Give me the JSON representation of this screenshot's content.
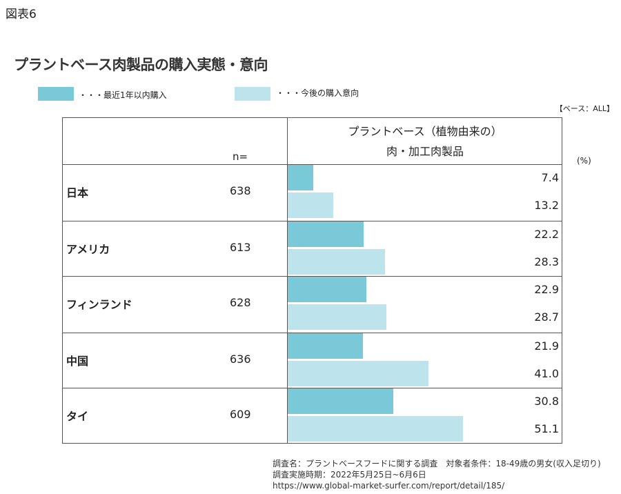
{
  "figure_label": "図表6",
  "title": "プラントベース肉製品の購入実態・意向",
  "legend": [
    {
      "label": "・・・最近1年以内購入",
      "color": "#79c9d9"
    },
    {
      "label": "・・・今後の購入意向",
      "color": "#bde4ec"
    }
  ],
  "base_note": "【ベース：ALL】",
  "unit": "(%)",
  "header": {
    "n_label": "n=",
    "column_line1": "プラントベース（植物由来の）",
    "column_line2": "肉・加工肉製品"
  },
  "chart_data": {
    "type": "bar",
    "orientation": "horizontal",
    "categories": [
      "日本",
      "アメリカ",
      "フィンランド",
      "中国",
      "タイ"
    ],
    "n": [
      "638",
      "613",
      "628",
      "636",
      "609"
    ],
    "series": [
      {
        "name": "最近1年以内購入",
        "color": "#79c9d9",
        "values": [
          7.4,
          22.2,
          22.9,
          21.9,
          30.8
        ]
      },
      {
        "name": "今後の購入意向",
        "color": "#bde4ec",
        "values": [
          13.2,
          28.3,
          28.7,
          41.0,
          51.1
        ]
      }
    ],
    "value_labels": [
      [
        "7.4",
        "13.2"
      ],
      [
        "22.2",
        "28.3"
      ],
      [
        "22.9",
        "28.7"
      ],
      [
        "21.9",
        "41.0"
      ],
      [
        "30.8",
        "51.1"
      ]
    ]
  },
  "footer": [
    "調査名：プラントベースフードに関する調査　対象者条件：18-49歳の男女(収入足切り)",
    "調査実施時期：2022年5月25日~6月6日",
    "https://www.global-market-surfer.com/report/detail/185/"
  ]
}
